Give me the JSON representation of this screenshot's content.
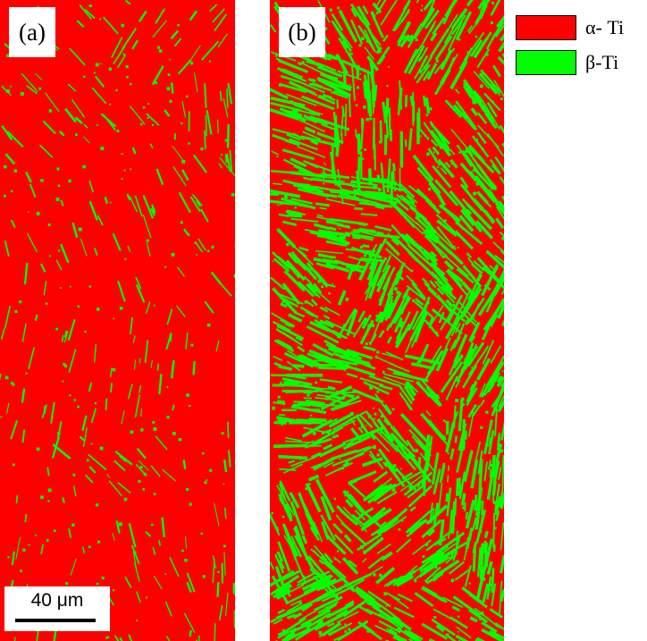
{
  "panels": [
    {
      "label": "(a)",
      "phase_density": "sparse"
    },
    {
      "label": "(b)",
      "phase_density": "dense"
    }
  ],
  "scale_bar": {
    "label": "40 μm"
  },
  "legend": {
    "items": [
      {
        "label": "α- Ti",
        "color": "#ff0000"
      },
      {
        "label": "β-Ti",
        "color": "#00ff00"
      }
    ]
  },
  "colors": {
    "alpha": "#ff0000",
    "beta": "#00ff00",
    "background": "#ffffff"
  }
}
